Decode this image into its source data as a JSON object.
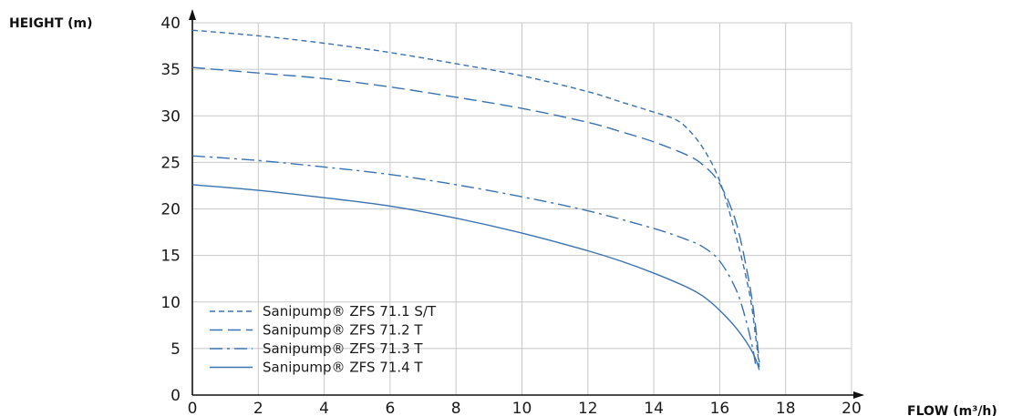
{
  "chart_data": {
    "type": "line",
    "xlabel": "FLOW (m³/h)",
    "ylabel": "HEIGHT (m)",
    "xlim": [
      0,
      20
    ],
    "ylim": [
      0,
      40
    ],
    "xticks": [
      0,
      2,
      4,
      6,
      8,
      10,
      12,
      14,
      16,
      18,
      20
    ],
    "yticks": [
      0,
      5,
      10,
      15,
      20,
      25,
      30,
      35,
      40
    ],
    "grid": true,
    "legend_position": "bottom-left",
    "line_color": "#3a72b0",
    "series": [
      {
        "name": "Sanipump® ZFS 71.1 S/T",
        "dash": "short-dash",
        "x": [
          0,
          2,
          4,
          6,
          8,
          10,
          12,
          13,
          14,
          14.6,
          15,
          15.5,
          16,
          16.5,
          16.9,
          17.1,
          17.2
        ],
        "y": [
          39.2,
          38.6,
          37.8,
          36.8,
          35.6,
          34.3,
          32.6,
          31.5,
          30.4,
          29.7,
          28.7,
          26.5,
          23.0,
          17.0,
          11.0,
          6.0,
          3.0
        ]
      },
      {
        "name": "Sanipump® ZFS 71.2 T",
        "dash": "long-dash",
        "x": [
          0,
          2,
          4,
          6,
          8,
          10,
          12,
          13,
          14,
          15,
          15.5,
          16,
          16.5,
          16.9,
          17.1,
          17.2
        ],
        "y": [
          35.2,
          34.6,
          34.0,
          33.1,
          32.0,
          30.8,
          29.3,
          28.3,
          27.2,
          25.8,
          24.7,
          22.7,
          18.5,
          12.0,
          7.0,
          3.5
        ]
      },
      {
        "name": "Sanipump® ZFS 71.3 T",
        "dash": "dash-dot",
        "x": [
          0,
          2,
          4,
          6,
          8,
          10,
          12,
          14,
          15,
          15.5,
          16,
          16.5,
          16.8,
          17.0,
          17.1
        ],
        "y": [
          25.7,
          25.2,
          24.5,
          23.7,
          22.6,
          21.3,
          19.8,
          17.9,
          16.7,
          15.9,
          14.4,
          11.3,
          8.0,
          5.0,
          3.0
        ]
      },
      {
        "name": "Sanipump® ZFS 71.4 T",
        "dash": "solid",
        "x": [
          0,
          2,
          4,
          6,
          8,
          10,
          12,
          13,
          14,
          15,
          15.5,
          16,
          16.5,
          16.9,
          17.1,
          17.2
        ],
        "y": [
          22.6,
          22.0,
          21.2,
          20.3,
          19.0,
          17.4,
          15.5,
          14.4,
          13.1,
          11.6,
          10.6,
          9.1,
          7.2,
          5.2,
          3.8,
          2.7
        ]
      }
    ]
  }
}
